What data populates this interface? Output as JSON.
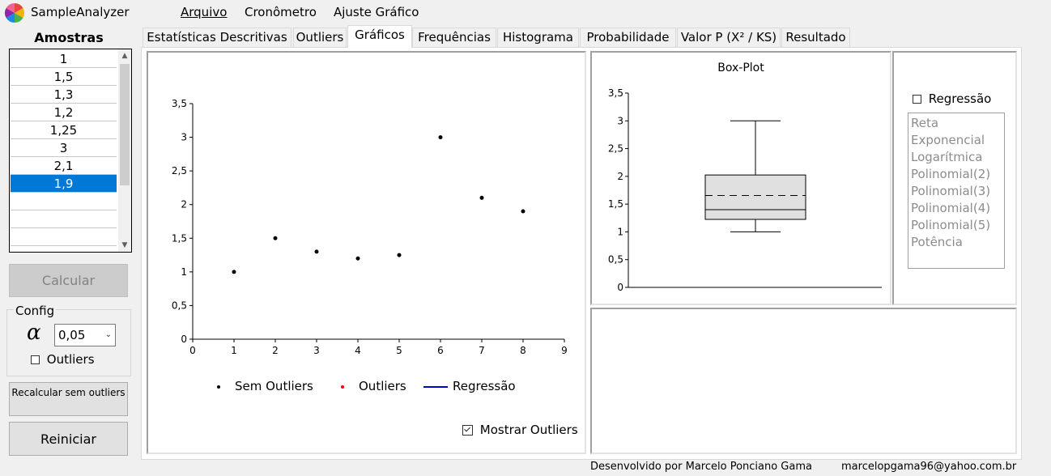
{
  "app": {
    "title": "SampleAnalyzer"
  },
  "menu": {
    "items": [
      {
        "label": "Arquivo"
      },
      {
        "label": "Cronômetro"
      },
      {
        "label": "Ajuste Gráfico"
      }
    ]
  },
  "sidebar": {
    "title": "Amostras",
    "samples": [
      "1",
      "1,5",
      "1,3",
      "1,2",
      "1,25",
      "3",
      "2,1",
      "1,9"
    ],
    "selected_index": 7,
    "calc_button": "Calcular",
    "config_title": "Config",
    "alpha_symbol": "α",
    "alpha_value": "0,05",
    "outliers_label": "Outliers",
    "outliers_checked": false,
    "recalc_button": "Recalcular sem outliers",
    "restart_button": "Reiniciar"
  },
  "tabs": [
    {
      "label": "Estatísticas Descritivas"
    },
    {
      "label": "Outliers"
    },
    {
      "label": "Gráficos"
    },
    {
      "label": "Frequências"
    },
    {
      "label": "Histograma"
    },
    {
      "label": "Probabilidade"
    },
    {
      "label": "Valor P (X² / KS)"
    },
    {
      "label": "Resultado"
    }
  ],
  "active_tab": "Gráficos",
  "scatter": {
    "legend": [
      {
        "label": "Sem Outliers",
        "color": "#000000"
      },
      {
        "label": "Outliers",
        "color": "#ff0000"
      },
      {
        "label": "Regressão",
        "color": "#0000cc"
      }
    ],
    "show_outliers_label": "Mostrar Outliers",
    "show_outliers_checked": true
  },
  "boxplot": {
    "title": "Box-Plot"
  },
  "regression": {
    "label": "Regressão",
    "checked": false,
    "options": [
      "Reta",
      "Exponencial",
      "Logarítmica",
      "Polinomial(2)",
      "Polinomial(3)",
      "Polinomial(4)",
      "Polinomial(5)",
      "Potência"
    ]
  },
  "footer": {
    "credit": "Desenvolvido por Marcelo Ponciano Gama",
    "email": "marcelopgama96@yahoo.com.br"
  },
  "chart_data": [
    {
      "type": "scatter",
      "series": [
        {
          "name": "Sem Outliers",
          "x": [
            1,
            2,
            3,
            4,
            5,
            6,
            7,
            8
          ],
          "y": [
            1,
            1.5,
            1.3,
            1.2,
            1.25,
            3,
            2.1,
            1.9
          ]
        }
      ],
      "xlim": [
        0,
        9
      ],
      "ylim": [
        0,
        3.5
      ],
      "xticks": [
        "0",
        "1",
        "2",
        "3",
        "4",
        "5",
        "6",
        "7",
        "8",
        "9"
      ],
      "yticks": [
        "0",
        "0,5",
        "1",
        "1,5",
        "2",
        "2,5",
        "3",
        "3,5"
      ],
      "legend_position": "bottom"
    },
    {
      "type": "boxplot",
      "title": "Box-Plot",
      "min": 1,
      "q1": 1.225,
      "median": 1.4,
      "mean": 1.656,
      "q3": 2.025,
      "max": 3,
      "ylim": [
        0,
        3.5
      ],
      "yticks": [
        "0",
        "0,5",
        "1",
        "1,5",
        "2",
        "2,5",
        "3",
        "3,5"
      ]
    }
  ]
}
